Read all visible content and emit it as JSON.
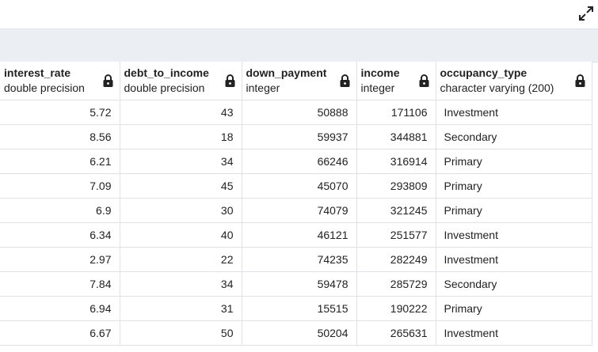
{
  "icons": {
    "expand": "expand-icon",
    "lock": "lock-icon"
  },
  "colors": {
    "toolbar_bg": "#ebeef3",
    "border": "#dee2e6",
    "text": "#222222"
  },
  "columns": [
    {
      "name": "interest_rate",
      "type": "double precision",
      "align": "num"
    },
    {
      "name": "debt_to_income",
      "type": "double precision",
      "align": "num"
    },
    {
      "name": "down_payment",
      "type": "integer",
      "align": "num"
    },
    {
      "name": "income",
      "type": "integer",
      "align": "num"
    },
    {
      "name": "occupancy_type",
      "type": "character varying (200)",
      "align": "txt"
    }
  ],
  "rows": [
    [
      "5.72",
      "43",
      "50888",
      "171106",
      "Investment"
    ],
    [
      "8.56",
      "18",
      "59937",
      "344881",
      "Secondary"
    ],
    [
      "6.21",
      "34",
      "66246",
      "316914",
      "Primary"
    ],
    [
      "7.09",
      "45",
      "45070",
      "293809",
      "Primary"
    ],
    [
      "6.9",
      "30",
      "74079",
      "321245",
      "Primary"
    ],
    [
      "6.34",
      "40",
      "46121",
      "251577",
      "Investment"
    ],
    [
      "2.97",
      "22",
      "74235",
      "282249",
      "Investment"
    ],
    [
      "7.84",
      "34",
      "59478",
      "285729",
      "Secondary"
    ],
    [
      "6.94",
      "31",
      "15515",
      "190222",
      "Primary"
    ],
    [
      "6.67",
      "50",
      "50204",
      "265631",
      "Investment"
    ]
  ]
}
